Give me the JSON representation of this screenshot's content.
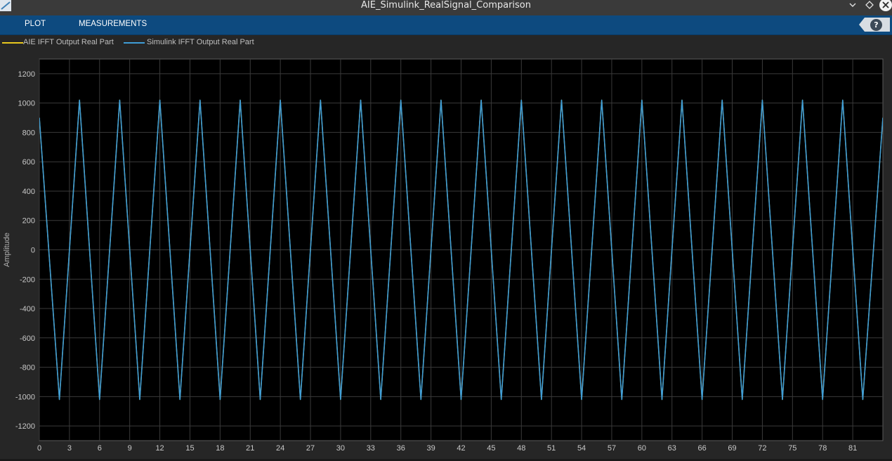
{
  "window": {
    "title": "AIE_Simulink_RealSignal_Comparison",
    "controls": [
      "chevron-down-icon",
      "diamond-icon",
      "close-icon"
    ]
  },
  "toolstrip": {
    "tabs": [
      {
        "label": "PLOT"
      },
      {
        "label": "MEASUREMENTS"
      }
    ],
    "help_label": "?"
  },
  "colors": {
    "toolstrip_bg": "#0d4a7f",
    "plot_bg": "#000000",
    "figure_bg": "#262626",
    "series_aie": "#e8c81e",
    "series_simulink": "#3f9dd6",
    "grid": "#3a3a3a"
  },
  "legend": [
    {
      "label": "AIE IFFT Output Real Part",
      "color": "#e8c81e"
    },
    {
      "label": "Simulink IFFT Output Real Part",
      "color": "#3f9dd6"
    }
  ],
  "chart_data": {
    "type": "line",
    "title": "",
    "xlabel": "",
    "ylabel": "Amplitude",
    "xlim": [
      0,
      84
    ],
    "ylim": [
      -1300,
      1300
    ],
    "grid": true,
    "x_ticks": [
      0,
      3,
      6,
      9,
      12,
      15,
      18,
      21,
      24,
      27,
      30,
      33,
      36,
      39,
      42,
      45,
      48,
      51,
      54,
      57,
      60,
      63,
      66,
      69,
      72,
      75,
      78,
      81
    ],
    "y_ticks": [
      -1200,
      -1000,
      -800,
      -600,
      -400,
      -200,
      0,
      200,
      400,
      600,
      800,
      1000,
      1200
    ],
    "series": [
      {
        "name": "AIE IFFT Output Real Part",
        "x": [
          0,
          2,
          4,
          6,
          8,
          10,
          12,
          14,
          16,
          18,
          20,
          22,
          24,
          26,
          28,
          30,
          32,
          34,
          36,
          38,
          40,
          42,
          44,
          46,
          48,
          50,
          52,
          54,
          56,
          58,
          60,
          62,
          64,
          66,
          68,
          70,
          72,
          74,
          76,
          78,
          80,
          82,
          84
        ],
        "y": [
          900,
          -1020,
          1020,
          -1020,
          1020,
          -1020,
          1020,
          -1020,
          1020,
          -1020,
          1020,
          -1020,
          1020,
          -1020,
          1020,
          -1020,
          1020,
          -1020,
          1020,
          -1020,
          1020,
          -1020,
          1020,
          -1020,
          1020,
          -1020,
          1020,
          -1020,
          1020,
          -1020,
          1020,
          -1020,
          1020,
          -1020,
          1020,
          -1020,
          1020,
          -1020,
          1020,
          -1020,
          1020,
          -1020,
          900
        ]
      },
      {
        "name": "Simulink IFFT Output Real Part",
        "x": [
          0,
          2,
          4,
          6,
          8,
          10,
          12,
          14,
          16,
          18,
          20,
          22,
          24,
          26,
          28,
          30,
          32,
          34,
          36,
          38,
          40,
          42,
          44,
          46,
          48,
          50,
          52,
          54,
          56,
          58,
          60,
          62,
          64,
          66,
          68,
          70,
          72,
          74,
          76,
          78,
          80,
          82,
          84
        ],
        "y": [
          900,
          -1020,
          1020,
          -1020,
          1020,
          -1020,
          1020,
          -1020,
          1020,
          -1020,
          1020,
          -1020,
          1020,
          -1020,
          1020,
          -1020,
          1020,
          -1020,
          1020,
          -1020,
          1020,
          -1020,
          1020,
          -1020,
          1020,
          -1020,
          1020,
          -1020,
          1020,
          -1020,
          1020,
          -1020,
          1020,
          -1020,
          1020,
          -1020,
          1020,
          -1020,
          1020,
          -1020,
          1020,
          -1020,
          900
        ]
      }
    ]
  }
}
